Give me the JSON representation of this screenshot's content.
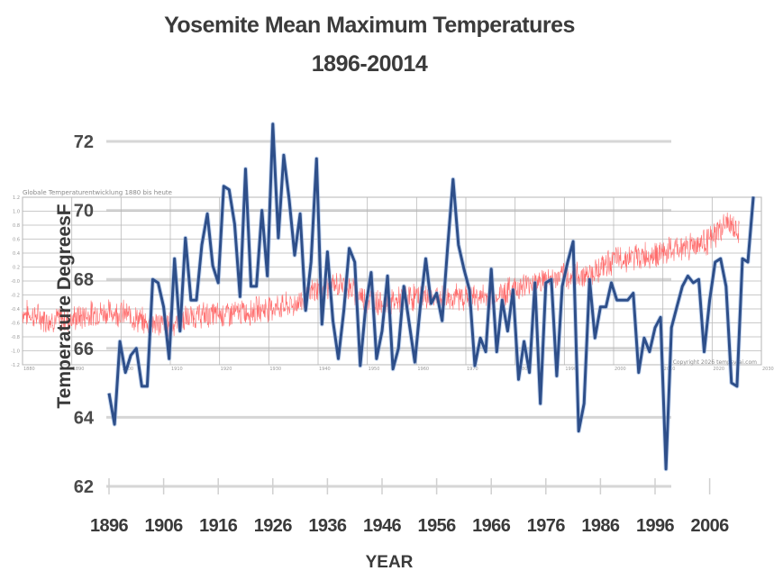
{
  "chart_data": [
    {
      "type": "line",
      "title": "Yosemite Mean Maximum Temperatures",
      "subtitle": "1896-20014",
      "xlabel": "YEAR",
      "ylabel": "Temperature DegreesF",
      "ylim": [
        62,
        72
      ],
      "xlim": [
        1896,
        2014
      ],
      "grid": true,
      "y_ticks": [
        "62",
        "64",
        "66",
        "68",
        "70",
        "72"
      ],
      "x_ticks": [
        "1896",
        "1906",
        "1916",
        "1926",
        "1936",
        "1946",
        "1956",
        "1966",
        "1976",
        "1986",
        "1996",
        "2006"
      ],
      "series": [
        {
          "name": "Yosemite Mean Maximum Temperature",
          "color": "#2e4f8a",
          "x": [
            1896,
            1897,
            1898,
            1899,
            1900,
            1901,
            1902,
            1903,
            1904,
            1905,
            1906,
            1907,
            1908,
            1909,
            1910,
            1911,
            1912,
            1913,
            1914,
            1915,
            1916,
            1917,
            1918,
            1919,
            1920,
            1921,
            1922,
            1923,
            1924,
            1925,
            1926,
            1927,
            1928,
            1929,
            1930,
            1931,
            1932,
            1933,
            1934,
            1935,
            1936,
            1937,
            1938,
            1939,
            1940,
            1941,
            1942,
            1943,
            1944,
            1945,
            1946,
            1947,
            1948,
            1949,
            1950,
            1951,
            1952,
            1953,
            1954,
            1955,
            1956,
            1957,
            1958,
            1959,
            1960,
            1961,
            1962,
            1963,
            1964,
            1965,
            1966,
            1967,
            1968,
            1969,
            1970,
            1971,
            1972,
            1973,
            1974,
            1975,
            1976,
            1977,
            1978,
            1979,
            1980,
            1981,
            1982,
            1983,
            1984,
            1985,
            1986,
            1987,
            1988,
            1989,
            1990,
            1991,
            1992,
            1993,
            1994,
            1995,
            1996,
            1997,
            1998,
            1999,
            2000,
            2001,
            2002,
            2003,
            2004,
            2005,
            2006,
            2007,
            2008,
            2009,
            2010,
            2011,
            2012,
            2013,
            2014
          ],
          "values": [
            64.7,
            63.8,
            66.2,
            65.3,
            65.8,
            66.0,
            64.9,
            64.9,
            68.0,
            67.9,
            67.2,
            65.7,
            68.6,
            66.5,
            69.2,
            67.4,
            67.4,
            69.0,
            69.9,
            68.4,
            67.9,
            70.7,
            70.6,
            69.6,
            67.5,
            71.2,
            67.8,
            67.8,
            70.0,
            68.1,
            72.5,
            69.2,
            71.6,
            70.3,
            68.7,
            69.9,
            67.1,
            68.5,
            71.5,
            66.7,
            68.8,
            66.8,
            65.7,
            67.1,
            68.9,
            68.5,
            65.5,
            67.2,
            68.2,
            65.7,
            66.5,
            68.1,
            65.4,
            66.0,
            67.8,
            66.7,
            65.6,
            67.2,
            68.6,
            67.3,
            67.6,
            66.8,
            68.9,
            70.9,
            69.0,
            68.3,
            67.7,
            65.5,
            66.3,
            65.9,
            68.3,
            65.9,
            67.4,
            66.5,
            67.7,
            65.1,
            66.2,
            65.3,
            67.9,
            64.4,
            67.9,
            68.0,
            65.2,
            67.8,
            68.5,
            69.1,
            63.6,
            64.4,
            68.0,
            66.3,
            67.2,
            67.2,
            67.9,
            67.4,
            67.4,
            67.4,
            67.6,
            65.3,
            66.3,
            65.9,
            66.6,
            66.9,
            62.5,
            66.6,
            67.2,
            67.8,
            68.1,
            67.9,
            68.0,
            65.9,
            67.4,
            68.5,
            68.6,
            67.8,
            65.0,
            64.9,
            68.6,
            68.5,
            70.4
          ]
        }
      ]
    },
    {
      "type": "line",
      "title": "Globale Temperaturentwicklung 1880 bis heute",
      "ylim": [
        -1.2,
        1.2
      ],
      "xlim": [
        1880,
        2030
      ],
      "grid": true,
      "y_ticks": [
        "1.2",
        "1.0",
        "0.8",
        "0.6",
        "0.4",
        "0.2",
        "-0.0",
        "-0.2",
        "-0.4",
        "-0.6",
        "-0.8",
        "-1.0",
        "-1.2"
      ],
      "x_ticks": [
        "1880",
        "1890",
        "1900",
        "1910",
        "1920",
        "1930",
        "1940",
        "1950",
        "1960",
        "1970",
        "1980",
        "1990",
        "2000",
        "2010",
        "2020",
        "2030"
      ],
      "annotation": "Copyright 2026 tempsvrai.com",
      "series": [
        {
          "name": "Global temperature anomaly (monthly)",
          "color": "#ff5a5a",
          "trend_x": [
            1880,
            1885,
            1890,
            1895,
            1900,
            1905,
            1910,
            1915,
            1920,
            1925,
            1930,
            1935,
            1940,
            1945,
            1950,
            1955,
            1960,
            1965,
            1970,
            1975,
            1980,
            1985,
            1990,
            1995,
            2000,
            2005,
            2010,
            2015,
            2020,
            2023,
            2025
          ],
          "trend_values": [
            -0.45,
            -0.55,
            -0.55,
            -0.45,
            -0.45,
            -0.6,
            -0.62,
            -0.5,
            -0.48,
            -0.45,
            -0.38,
            -0.35,
            -0.1,
            -0.05,
            -0.28,
            -0.3,
            -0.22,
            -0.25,
            -0.22,
            -0.25,
            -0.1,
            0.0,
            0.05,
            0.1,
            0.3,
            0.35,
            0.4,
            0.5,
            0.6,
            0.85,
            0.7
          ]
        }
      ]
    }
  ]
}
